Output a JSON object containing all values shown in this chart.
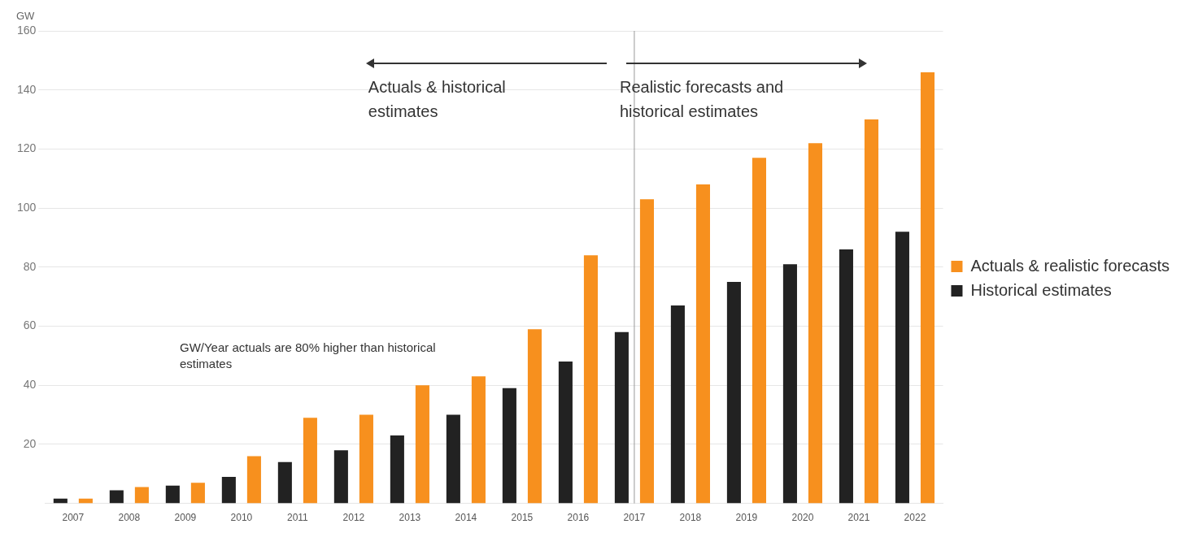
{
  "chart_data": {
    "type": "bar",
    "ylabel": "GW",
    "categories": [
      "2007",
      "2008",
      "2009",
      "2010",
      "2011",
      "2012",
      "2013",
      "2014",
      "2015",
      "2016",
      "2017",
      "2018",
      "2019",
      "2020",
      "2021",
      "2022"
    ],
    "series": [
      {
        "name": "Historical estimates",
        "color": "#222222",
        "values": [
          1.6,
          4.4,
          6,
          9,
          14,
          18,
          23,
          30,
          39,
          48,
          58,
          67,
          75,
          81,
          86,
          92
        ]
      },
      {
        "name": "Actuals & realistic forecasts",
        "color": "#f7901e",
        "values": [
          1.6,
          5.5,
          7,
          16,
          29,
          30,
          40,
          43,
          59,
          84,
          103,
          108,
          117,
          122,
          130,
          146
        ]
      }
    ],
    "ylim": [
      0,
      160
    ],
    "yticks": [
      20,
      40,
      60,
      80,
      100,
      120,
      140,
      160
    ],
    "grid": "y",
    "legend": "right",
    "ref_lines": [
      {
        "axis": "x",
        "value": "2017",
        "color": "#999999"
      }
    ],
    "annotations": [
      "Actuals & historical estimates",
      "Realistic forecasts and historical estimates",
      "GW/Year actuals are 80% higher than historical estimates"
    ]
  }
}
